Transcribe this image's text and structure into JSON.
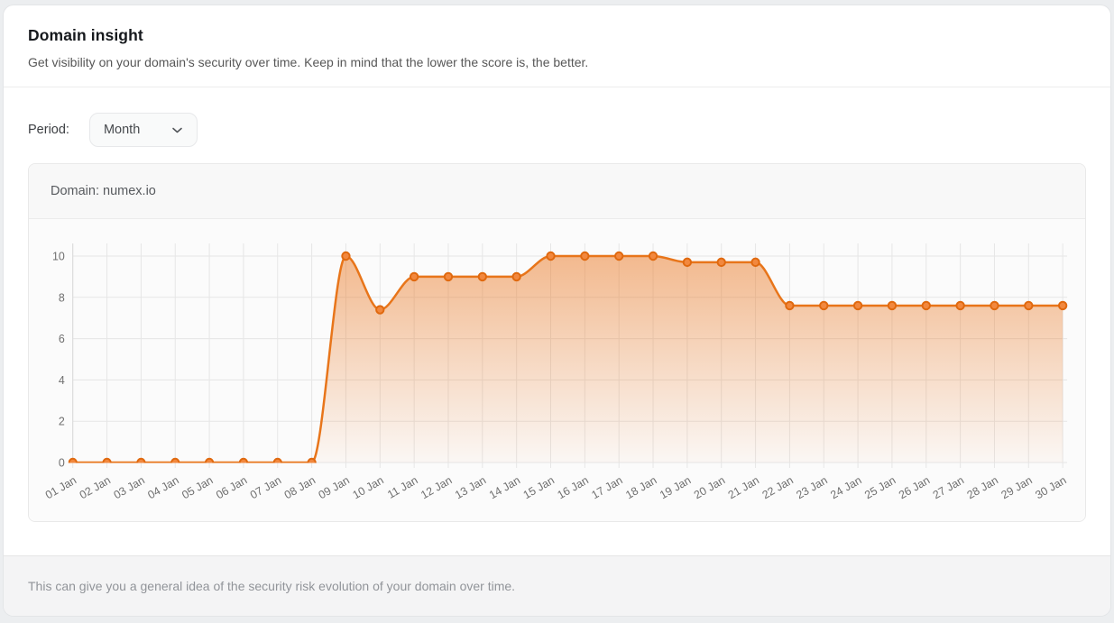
{
  "header": {
    "title": "Domain insight",
    "subtitle": "Get visibility on your domain's security over time. Keep in mind that the lower the score is, the better."
  },
  "controls": {
    "period_label": "Period:",
    "period_value": "Month"
  },
  "chart_panel": {
    "domain_label": "Domain: numex.io"
  },
  "chart_data": {
    "type": "area",
    "title": "Domain: numex.io",
    "categories": [
      "01 Jan",
      "02 Jan",
      "03 Jan",
      "04 Jan",
      "05 Jan",
      "06 Jan",
      "07 Jan",
      "08 Jan",
      "09 Jan",
      "10 Jan",
      "11 Jan",
      "12 Jan",
      "13 Jan",
      "14 Jan",
      "15 Jan",
      "16 Jan",
      "17 Jan",
      "18 Jan",
      "19 Jan",
      "20 Jan",
      "21 Jan",
      "22 Jan",
      "23 Jan",
      "24 Jan",
      "25 Jan",
      "26 Jan",
      "27 Jan",
      "28 Jan",
      "29 Jan",
      "30 Jan"
    ],
    "values": [
      0,
      0,
      0,
      0,
      0,
      0,
      0,
      0,
      10,
      7.4,
      9,
      9,
      9,
      9,
      10,
      10,
      10,
      10,
      9.7,
      9.7,
      9.7,
      7.6,
      7.6,
      7.6,
      7.6,
      7.6,
      7.6,
      7.6,
      7.6,
      7.6
    ],
    "xlabel": "",
    "ylabel": "",
    "ylim": [
      0,
      10
    ],
    "yticks": [
      0,
      2,
      4,
      6,
      8,
      10
    ],
    "grid": true,
    "legend": false,
    "curve": "smooth",
    "colors": {
      "line": "#E8751A",
      "marker_fill": "#F2883E",
      "marker_stroke": "#E0690F",
      "area_top": "rgba(234,120,35,0.50)",
      "area_bottom": "rgba(234,120,35,0.03)",
      "grid_line": "#e6e6e6",
      "axis_line": "#d9d9d9",
      "tick_text": "#6f6f6f"
    }
  },
  "footer": {
    "note": "This can give you a general idea of the security risk evolution of your domain over time."
  }
}
